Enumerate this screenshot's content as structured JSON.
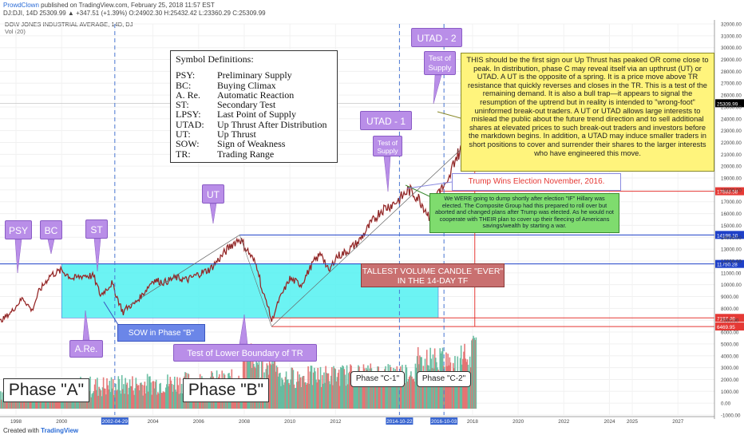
{
  "header": {
    "author": "ProwdClown",
    "published_text": "published on TradingView.com, February 25, 2018 11:57 EST",
    "ohlc_line": "DJ:DJI, 14D 25309.99 ▲ +347.51 (+1.39%) O:24902.30 H:25432.42 L:23360.29 C:25309.99"
  },
  "chart_title": "DOW JONES INDUSTRIAL AVERAGE, 14D, DJ",
  "volume_label": "Vol (20)",
  "footer": {
    "created_with": "Created with",
    "brand": "TradingView"
  },
  "definitions": {
    "title": "Symbol Definitions:",
    "rows": [
      {
        "k": "PSY:",
        "v": "Preliminary Supply"
      },
      {
        "k": "BC:",
        "v": "Buying Climax"
      },
      {
        "k": "A. Re.",
        "v": "Automatic Reaction"
      },
      {
        "k": "ST:",
        "v": "Secondary Test"
      },
      {
        "k": "LPSY:",
        "v": "Last Point of Supply"
      },
      {
        "k": "UTAD:",
        "v": "Up Thrust After Distribution"
      },
      {
        "k": "UT:",
        "v": "Up Thrust"
      },
      {
        "k": "SOW:",
        "v": "Sign of Weakness"
      },
      {
        "k": "TR:",
        "v": "Trading Range"
      }
    ]
  },
  "annotations": {
    "psy": "PSY",
    "bc": "BC",
    "st": "ST",
    "ut": "UT",
    "are": "A.Re.",
    "sow_b": "SOW in Phase \"B\"",
    "test_lower": "Test of Lower Boundary of TR",
    "utad1": "UTAD - 1",
    "utad2": "UTAD - 2",
    "test_supply1": "Test of Supply",
    "test_supply2": "Test of Supply",
    "trump": "Trump Wins Election November, 2016.",
    "yellow_note": "THIS should be the first sign our Up Thrust has peaked OR come close to peak.  In distribution, phase C may reveal itself via an upthrust (UT) or UTAD. A UT is the opposite of a spring. It is a price move above TR resistance that quickly reverses and closes in the TR. This is a test of the remaining demand. It is also a bull trap—it appears to signal the resumption of the uptrend but in reality is intended to \"wrong-foot\" uninformed break-out traders. A UT or UTAD allows large interests to mislead the public about the future trend direction and to sell additional shares at elevated prices to such break-out traders and investors before the markdown begins. In addition, a UTAD may induce smaller traders in short positions to cover and surrender their shares to the larger interests who have engineered this move.",
    "green_note": "We WERE going to dump shortly after election \"IF\" Hillary was elected.  The Composite Group had this prepared to roll over but aborted and changed plans after Trump was elected.  As he would not cooperate with THEIR plan to cover up their fleecing of Americans savings/wealth by starting a war.",
    "tallest_volume": "TALLEST VOLUME CANDLE \"EVER\" IN THE 14-DAY TF",
    "phase_a": "Phase \"A\"",
    "phase_b": "Phase \"B\"",
    "phase_c1": "Phase \"C-1\"",
    "phase_c2": "Phase \"C-2\""
  },
  "chart_data": {
    "type": "line",
    "title": "DOW JONES INDUSTRIAL AVERAGE, 14D, DJ",
    "x_ticks": [
      "1998",
      "2000",
      "2002-04-29",
      "2004",
      "2006",
      "2008",
      "2010",
      "2012",
      "2014-10-22",
      "2016-10-03",
      "2018",
      "2020",
      "2022",
      "2024",
      "2025",
      "2027"
    ],
    "y_ticks": [
      32000,
      31000,
      30000,
      29000,
      28000,
      27000,
      26000,
      25000,
      24000,
      23000,
      22000,
      21000,
      20000,
      19000,
      18000,
      17000,
      16000,
      15000,
      14000,
      13000,
      12000,
      11000,
      10000,
      9000,
      8000,
      7000,
      6000,
      5000,
      4000,
      3000,
      2000,
      1000,
      0,
      -1000
    ],
    "price_labels": [
      {
        "value": "25309.99",
        "color": "#000000"
      },
      {
        "value": "17883.58",
        "color": "#e53935"
      },
      {
        "value": "14198.10",
        "color": "#1e40c8"
      },
      {
        "value": "11750.28",
        "color": "#1e40c8"
      },
      {
        "value": "7197.49",
        "color": "#e53935"
      },
      {
        "value": "6469.95",
        "color": "#e53935"
      }
    ],
    "series": [
      {
        "name": "DJI",
        "x": [
          1997.3,
          1997.8,
          1998.3,
          1998.7,
          1999.0,
          1999.5,
          2000.0,
          2000.5,
          2001.0,
          2001.4,
          2001.7,
          2002.2,
          2002.7,
          2002.8,
          2003.2,
          2003.6,
          2004.0,
          2004.5,
          2005.0,
          2005.5,
          2006.0,
          2006.5,
          2007.0,
          2007.4,
          2007.8,
          2008.2,
          2008.6,
          2008.8,
          2009.0,
          2009.2,
          2009.5,
          2010.0,
          2010.5,
          2011.0,
          2011.4,
          2011.7,
          2012.0,
          2012.5,
          2013.0,
          2013.5,
          2014.0,
          2014.5,
          2014.8,
          2015.2,
          2015.6,
          2015.9,
          2016.1,
          2016.5,
          2016.9,
          2017.2,
          2017.6,
          2018.0,
          2018.05,
          2018.1,
          2018.15
        ],
        "y": [
          6900,
          7700,
          8900,
          7800,
          9400,
          10800,
          11200,
          10500,
          10800,
          10700,
          9100,
          10100,
          7600,
          8000,
          8400,
          9300,
          10400,
          10200,
          10600,
          10400,
          10900,
          11300,
          12400,
          13300,
          13900,
          12700,
          11400,
          9300,
          8500,
          6900,
          8600,
          10500,
          10000,
          11800,
          12700,
          11000,
          12300,
          12800,
          13600,
          15000,
          16300,
          16800,
          17200,
          18000,
          17400,
          16500,
          15800,
          18000,
          18300,
          20500,
          21700,
          24500,
          26500,
          24000,
          25310
        ]
      }
    ],
    "volume_note": "tallest volume candle at 2018"
  }
}
